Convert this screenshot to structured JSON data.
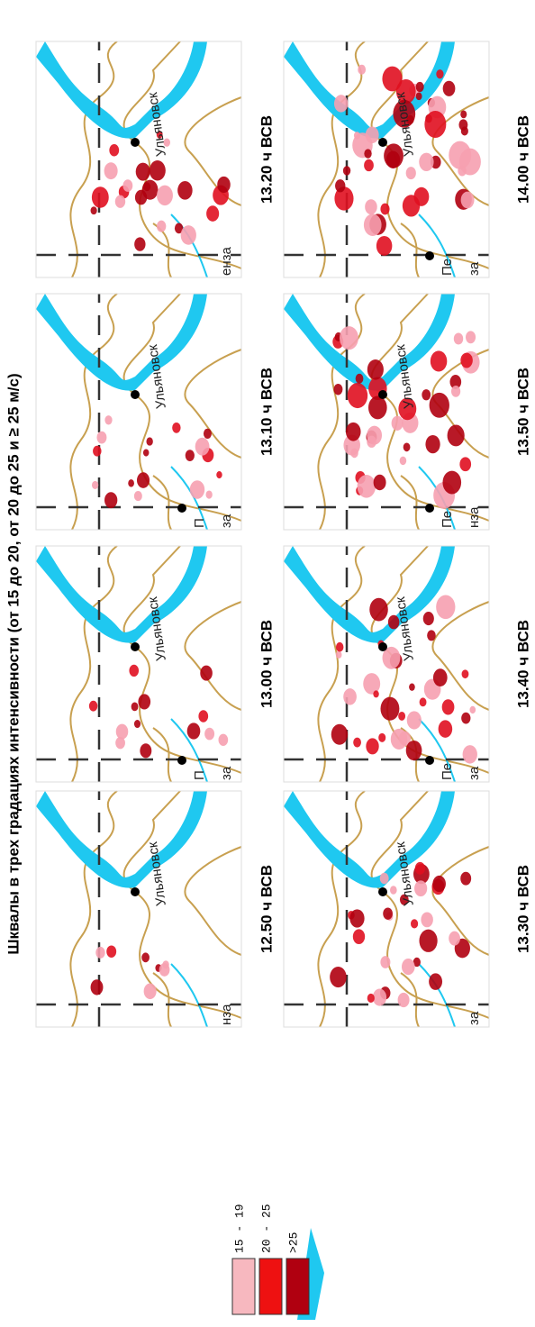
{
  "header": {
    "title": "Шквалы в трех градациях интенсивности (от 15 до 20, от 20 до 25 и ≥ 25 м/с)"
  },
  "legend": {
    "items": [
      "15 - 19",
      "20 - 25",
      ">25"
    ]
  },
  "panels": [
    {
      "time": "12.50 ч ВСВ",
      "city": "Ульяновск",
      "region": "нза"
    },
    {
      "time": "13.00 ч ВСВ",
      "city": "Ульяновск",
      "region": "за",
      "edge": "П"
    },
    {
      "time": "13.10 ч ВСВ",
      "city": "Ульяновск",
      "region": "за",
      "edge": "П"
    },
    {
      "time": "13.20 ч ВСВ",
      "city": "Ульяновск",
      "region": "енза"
    },
    {
      "time": "13.30 ч ВСВ",
      "city": "Ульяновск",
      "region": "за"
    },
    {
      "time": "13.40 ч ВСВ",
      "city": "Ульяновск",
      "region": "за",
      "edge": "Пе"
    },
    {
      "time": "13.50 ч ВСВ",
      "city": "Ульяновск",
      "region": "нза",
      "edge": "Пе"
    },
    {
      "time": "14.00 ч ВСВ",
      "city": "Ульяновск",
      "region": "за",
      "edge": "Пе"
    }
  ]
}
